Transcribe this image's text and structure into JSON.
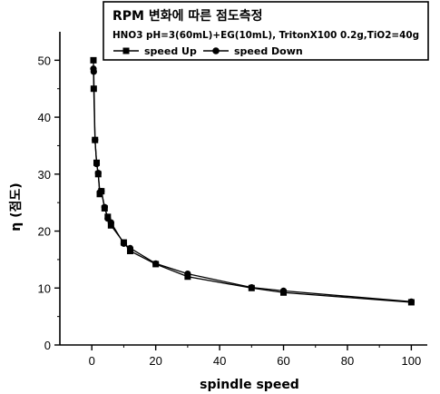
{
  "chart_data": {
    "type": "line",
    "xlabel": "spindle speed",
    "ylabel": "η (점도)",
    "xlim": [
      -10,
      105
    ],
    "ylim": [
      0,
      55
    ],
    "x_ticks": [
      0,
      20,
      40,
      60,
      80,
      100
    ],
    "y_ticks": [
      0,
      10,
      20,
      30,
      40,
      50
    ],
    "grid": false,
    "legend_position": "top",
    "legend": {
      "title": "RPM 변화에 따른 점도측정",
      "subtitle": "HNO3 pH=3(60mL)+EG(10mL), TritonX100 0.2g,TiO2=40g"
    },
    "series": [
      {
        "name": "speed Up",
        "marker": "square",
        "x": [
          0.5,
          0.6,
          1,
          1.5,
          2,
          2.5,
          3,
          4,
          5,
          6,
          10,
          12,
          20,
          30,
          50,
          60,
          100
        ],
        "y": [
          50,
          45,
          36,
          32,
          30,
          26.5,
          27,
          24,
          22.5,
          21,
          18,
          16.5,
          14.2,
          12,
          10,
          9.2,
          7.5
        ]
      },
      {
        "name": "speed Down",
        "marker": "circle",
        "x": [
          100,
          60,
          50,
          30,
          20,
          12,
          10,
          6,
          5,
          4,
          3,
          2.5,
          2,
          1.5,
          1,
          0.6,
          0.5
        ],
        "y": [
          7.6,
          9.5,
          10.1,
          12.5,
          14.3,
          17,
          17.8,
          21.5,
          22.2,
          24.2,
          27,
          26.8,
          30.2,
          31.8,
          36,
          48,
          48.5
        ]
      }
    ]
  }
}
